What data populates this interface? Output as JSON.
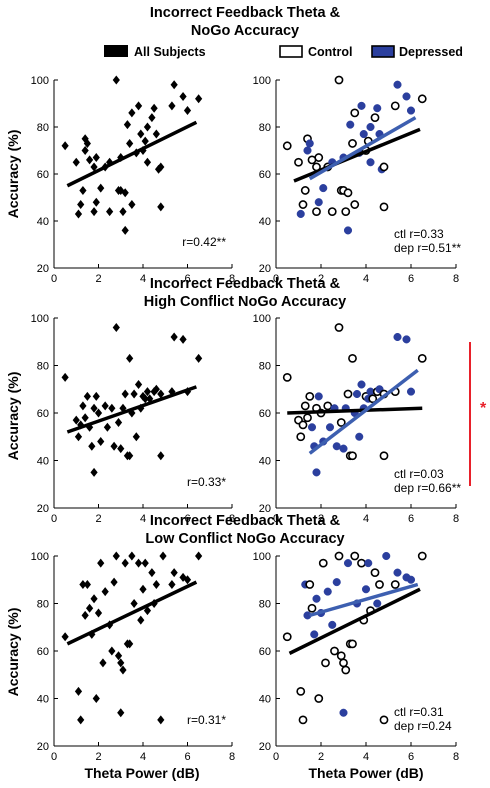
{
  "legend": {
    "all": "All Subjects",
    "control": "Control",
    "depressed": "Depressed"
  },
  "colors": {
    "depressed": "#2b3f9e",
    "reg_depressed": "#3d5fb0",
    "significance": "#e8202a",
    "black": "#000000"
  },
  "xlabel": "Theta Power (dB)",
  "ylabel": "Accuracy (%)",
  "significance": "*",
  "chart_data": [
    {
      "title": [
        "Incorrect Feedback Theta &",
        "NoGo Accuracy"
      ],
      "type": "scatter",
      "xlim": [
        0,
        8
      ],
      "ylim": [
        20,
        100
      ],
      "xticks": [
        0,
        2,
        4,
        6,
        8
      ],
      "yticks": [
        20,
        40,
        60,
        80,
        100
      ],
      "stats": {
        "all": "r=0.42**",
        "ctl": "ctl r=0.33",
        "dep": "dep r=0.51**"
      },
      "regression": {
        "all": [
          [
            0.6,
            55
          ],
          [
            6.4,
            82
          ]
        ],
        "control": [
          [
            0.8,
            57
          ],
          [
            6.4,
            79
          ]
        ],
        "depressed": [
          [
            1.5,
            58
          ],
          [
            6.2,
            84
          ]
        ]
      },
      "points": [
        {
          "x": 0.5,
          "y": 72,
          "g": "c"
        },
        {
          "x": 1.0,
          "y": 65,
          "g": "c"
        },
        {
          "x": 1.1,
          "y": 43,
          "g": "d"
        },
        {
          "x": 1.2,
          "y": 47,
          "g": "c"
        },
        {
          "x": 1.3,
          "y": 53,
          "g": "c"
        },
        {
          "x": 1.4,
          "y": 75,
          "g": "c"
        },
        {
          "x": 1.4,
          "y": 70,
          "g": "d"
        },
        {
          "x": 1.5,
          "y": 73,
          "g": "d"
        },
        {
          "x": 1.6,
          "y": 66,
          "g": "c"
        },
        {
          "x": 1.8,
          "y": 63,
          "g": "c"
        },
        {
          "x": 1.9,
          "y": 48,
          "g": "d"
        },
        {
          "x": 1.9,
          "y": 67,
          "g": "c"
        },
        {
          "x": 1.8,
          "y": 44,
          "g": "c"
        },
        {
          "x": 2.1,
          "y": 54,
          "g": "d"
        },
        {
          "x": 2.3,
          "y": 63,
          "g": "c"
        },
        {
          "x": 2.5,
          "y": 44,
          "g": "c"
        },
        {
          "x": 2.5,
          "y": 65,
          "g": "d"
        },
        {
          "x": 2.8,
          "y": 100,
          "g": "c"
        },
        {
          "x": 2.9,
          "y": 53,
          "g": "c"
        },
        {
          "x": 3.0,
          "y": 53,
          "g": "c"
        },
        {
          "x": 3.1,
          "y": 44,
          "g": "c"
        },
        {
          "x": 3.0,
          "y": 67,
          "g": "d"
        },
        {
          "x": 3.2,
          "y": 36,
          "g": "d"
        },
        {
          "x": 3.2,
          "y": 52,
          "g": "c"
        },
        {
          "x": 3.3,
          "y": 81,
          "g": "d"
        },
        {
          "x": 3.5,
          "y": 47,
          "g": "c"
        },
        {
          "x": 3.4,
          "y": 73,
          "g": "c"
        },
        {
          "x": 3.5,
          "y": 86,
          "g": "c"
        },
        {
          "x": 3.7,
          "y": 69,
          "g": "d"
        },
        {
          "x": 3.8,
          "y": 89,
          "g": "d"
        },
        {
          "x": 3.9,
          "y": 77,
          "g": "d"
        },
        {
          "x": 4.0,
          "y": 70,
          "g": "c"
        },
        {
          "x": 4.1,
          "y": 74,
          "g": "c"
        },
        {
          "x": 4.2,
          "y": 65,
          "g": "d"
        },
        {
          "x": 4.2,
          "y": 80,
          "g": "d"
        },
        {
          "x": 4.4,
          "y": 84,
          "g": "c"
        },
        {
          "x": 4.5,
          "y": 88,
          "g": "d"
        },
        {
          "x": 4.6,
          "y": 77,
          "g": "d"
        },
        {
          "x": 4.7,
          "y": 62,
          "g": "d"
        },
        {
          "x": 4.8,
          "y": 63,
          "g": "c"
        },
        {
          "x": 4.8,
          "y": 46,
          "g": "c"
        },
        {
          "x": 5.3,
          "y": 89,
          "g": "c"
        },
        {
          "x": 5.4,
          "y": 98,
          "g": "d"
        },
        {
          "x": 5.8,
          "y": 93,
          "g": "d"
        },
        {
          "x": 6.0,
          "y": 87,
          "g": "d"
        },
        {
          "x": 6.5,
          "y": 92,
          "g": "c"
        }
      ]
    },
    {
      "title": [
        "Incorrect Feedback Theta &",
        "High Conflict NoGo Accuracy"
      ],
      "type": "scatter",
      "xlim": [
        0,
        8
      ],
      "ylim": [
        20,
        100
      ],
      "xticks": [
        0,
        2,
        4,
        6,
        8
      ],
      "yticks": [
        20,
        40,
        60,
        80,
        100
      ],
      "stats": {
        "all": "r=0.33*",
        "ctl": "ctl r=0.03",
        "dep": "dep r=0.66**"
      },
      "regression": {
        "all": [
          [
            0.6,
            52
          ],
          [
            6.4,
            71
          ]
        ],
        "control": [
          [
            0.5,
            60
          ],
          [
            6.5,
            62
          ]
        ],
        "depressed": [
          [
            1.5,
            43
          ],
          [
            6.3,
            78
          ]
        ]
      },
      "points": [
        {
          "x": 0.5,
          "y": 75,
          "g": "c"
        },
        {
          "x": 1.0,
          "y": 57,
          "g": "c"
        },
        {
          "x": 1.1,
          "y": 50,
          "g": "c"
        },
        {
          "x": 1.2,
          "y": 55,
          "g": "c"
        },
        {
          "x": 1.3,
          "y": 63,
          "g": "c"
        },
        {
          "x": 1.4,
          "y": 58,
          "g": "c"
        },
        {
          "x": 1.5,
          "y": 67,
          "g": "c"
        },
        {
          "x": 1.6,
          "y": 54,
          "g": "d"
        },
        {
          "x": 1.7,
          "y": 46,
          "g": "d"
        },
        {
          "x": 1.8,
          "y": 35,
          "g": "d"
        },
        {
          "x": 1.8,
          "y": 62,
          "g": "c"
        },
        {
          "x": 1.9,
          "y": 67,
          "g": "d"
        },
        {
          "x": 2.0,
          "y": 60,
          "g": "c"
        },
        {
          "x": 2.1,
          "y": 48,
          "g": "d"
        },
        {
          "x": 2.3,
          "y": 63,
          "g": "c"
        },
        {
          "x": 2.4,
          "y": 54,
          "g": "d"
        },
        {
          "x": 2.6,
          "y": 62,
          "g": "d"
        },
        {
          "x": 2.7,
          "y": 46,
          "g": "d"
        },
        {
          "x": 2.8,
          "y": 96,
          "g": "c"
        },
        {
          "x": 2.9,
          "y": 56,
          "g": "c"
        },
        {
          "x": 3.0,
          "y": 45,
          "g": "d"
        },
        {
          "x": 3.1,
          "y": 62,
          "g": "d"
        },
        {
          "x": 3.2,
          "y": 68,
          "g": "c"
        },
        {
          "x": 3.3,
          "y": 42,
          "g": "c"
        },
        {
          "x": 3.4,
          "y": 42,
          "g": "c"
        },
        {
          "x": 3.4,
          "y": 83,
          "g": "c"
        },
        {
          "x": 3.5,
          "y": 60,
          "g": "d"
        },
        {
          "x": 3.6,
          "y": 68,
          "g": "d"
        },
        {
          "x": 3.7,
          "y": 50,
          "g": "d"
        },
        {
          "x": 3.8,
          "y": 72,
          "g": "d"
        },
        {
          "x": 3.9,
          "y": 62,
          "g": "d"
        },
        {
          "x": 4.0,
          "y": 67,
          "g": "c"
        },
        {
          "x": 4.1,
          "y": 66,
          "g": "d"
        },
        {
          "x": 4.2,
          "y": 69,
          "g": "d"
        },
        {
          "x": 4.3,
          "y": 66,
          "g": "c"
        },
        {
          "x": 4.5,
          "y": 69,
          "g": "c"
        },
        {
          "x": 4.6,
          "y": 70,
          "g": "d"
        },
        {
          "x": 4.8,
          "y": 68,
          "g": "c"
        },
        {
          "x": 4.8,
          "y": 42,
          "g": "c"
        },
        {
          "x": 5.3,
          "y": 69,
          "g": "c"
        },
        {
          "x": 5.4,
          "y": 92,
          "g": "d"
        },
        {
          "x": 5.8,
          "y": 91,
          "g": "d"
        },
        {
          "x": 6.0,
          "y": 69,
          "g": "d"
        },
        {
          "x": 6.5,
          "y": 83,
          "g": "c"
        }
      ]
    },
    {
      "title": [
        "Incorrect Feedback Theta &",
        "Low Conflict NoGo Accuracy"
      ],
      "type": "scatter",
      "xlim": [
        0,
        8
      ],
      "ylim": [
        20,
        100
      ],
      "xticks": [
        0,
        2,
        4,
        6,
        8
      ],
      "yticks": [
        20,
        40,
        60,
        80,
        100
      ],
      "stats": {
        "all": "r=0.31*",
        "ctl": "ctl r=0.31",
        "dep": "dep r=0.24"
      },
      "regression": {
        "all": [
          [
            0.6,
            63
          ],
          [
            6.4,
            89
          ]
        ],
        "control": [
          [
            0.6,
            59
          ],
          [
            6.4,
            86
          ]
        ],
        "depressed": [
          [
            1.5,
            75
          ],
          [
            6.3,
            88
          ]
        ]
      },
      "points": [
        {
          "x": 0.5,
          "y": 66,
          "g": "c"
        },
        {
          "x": 1.1,
          "y": 43,
          "g": "c"
        },
        {
          "x": 1.2,
          "y": 31,
          "g": "c"
        },
        {
          "x": 1.3,
          "y": 88,
          "g": "d"
        },
        {
          "x": 1.4,
          "y": 75,
          "g": "d"
        },
        {
          "x": 1.5,
          "y": 88,
          "g": "c"
        },
        {
          "x": 1.6,
          "y": 78,
          "g": "c"
        },
        {
          "x": 1.7,
          "y": 67,
          "g": "d"
        },
        {
          "x": 1.8,
          "y": 82,
          "g": "d"
        },
        {
          "x": 1.9,
          "y": 40,
          "g": "c"
        },
        {
          "x": 2.0,
          "y": 76,
          "g": "d"
        },
        {
          "x": 2.1,
          "y": 97,
          "g": "c"
        },
        {
          "x": 2.2,
          "y": 55,
          "g": "c"
        },
        {
          "x": 2.3,
          "y": 85,
          "g": "d"
        },
        {
          "x": 2.5,
          "y": 71,
          "g": "d"
        },
        {
          "x": 2.6,
          "y": 60,
          "g": "c"
        },
        {
          "x": 2.7,
          "y": 89,
          "g": "d"
        },
        {
          "x": 2.8,
          "y": 100,
          "g": "c"
        },
        {
          "x": 2.9,
          "y": 58,
          "g": "c"
        },
        {
          "x": 3.0,
          "y": 55,
          "g": "c"
        },
        {
          "x": 3.0,
          "y": 34,
          "g": "d"
        },
        {
          "x": 3.1,
          "y": 52,
          "g": "c"
        },
        {
          "x": 3.2,
          "y": 97,
          "g": "d"
        },
        {
          "x": 3.3,
          "y": 63,
          "g": "c"
        },
        {
          "x": 3.4,
          "y": 63,
          "g": "c"
        },
        {
          "x": 3.5,
          "y": 100,
          "g": "c"
        },
        {
          "x": 3.6,
          "y": 80,
          "g": "d"
        },
        {
          "x": 3.8,
          "y": 97,
          "g": "c"
        },
        {
          "x": 3.9,
          "y": 73,
          "g": "c"
        },
        {
          "x": 4.0,
          "y": 86,
          "g": "d"
        },
        {
          "x": 4.1,
          "y": 97,
          "g": "d"
        },
        {
          "x": 4.2,
          "y": 77,
          "g": "c"
        },
        {
          "x": 4.4,
          "y": 93,
          "g": "c"
        },
        {
          "x": 4.5,
          "y": 80,
          "g": "d"
        },
        {
          "x": 4.6,
          "y": 88,
          "g": "c"
        },
        {
          "x": 4.8,
          "y": 31,
          "g": "c"
        },
        {
          "x": 4.9,
          "y": 100,
          "g": "d"
        },
        {
          "x": 5.3,
          "y": 88,
          "g": "c"
        },
        {
          "x": 5.4,
          "y": 93,
          "g": "d"
        },
        {
          "x": 5.8,
          "y": 91,
          "g": "d"
        },
        {
          "x": 6.0,
          "y": 90,
          "g": "d"
        },
        {
          "x": 6.5,
          "y": 100,
          "g": "c"
        }
      ]
    }
  ]
}
